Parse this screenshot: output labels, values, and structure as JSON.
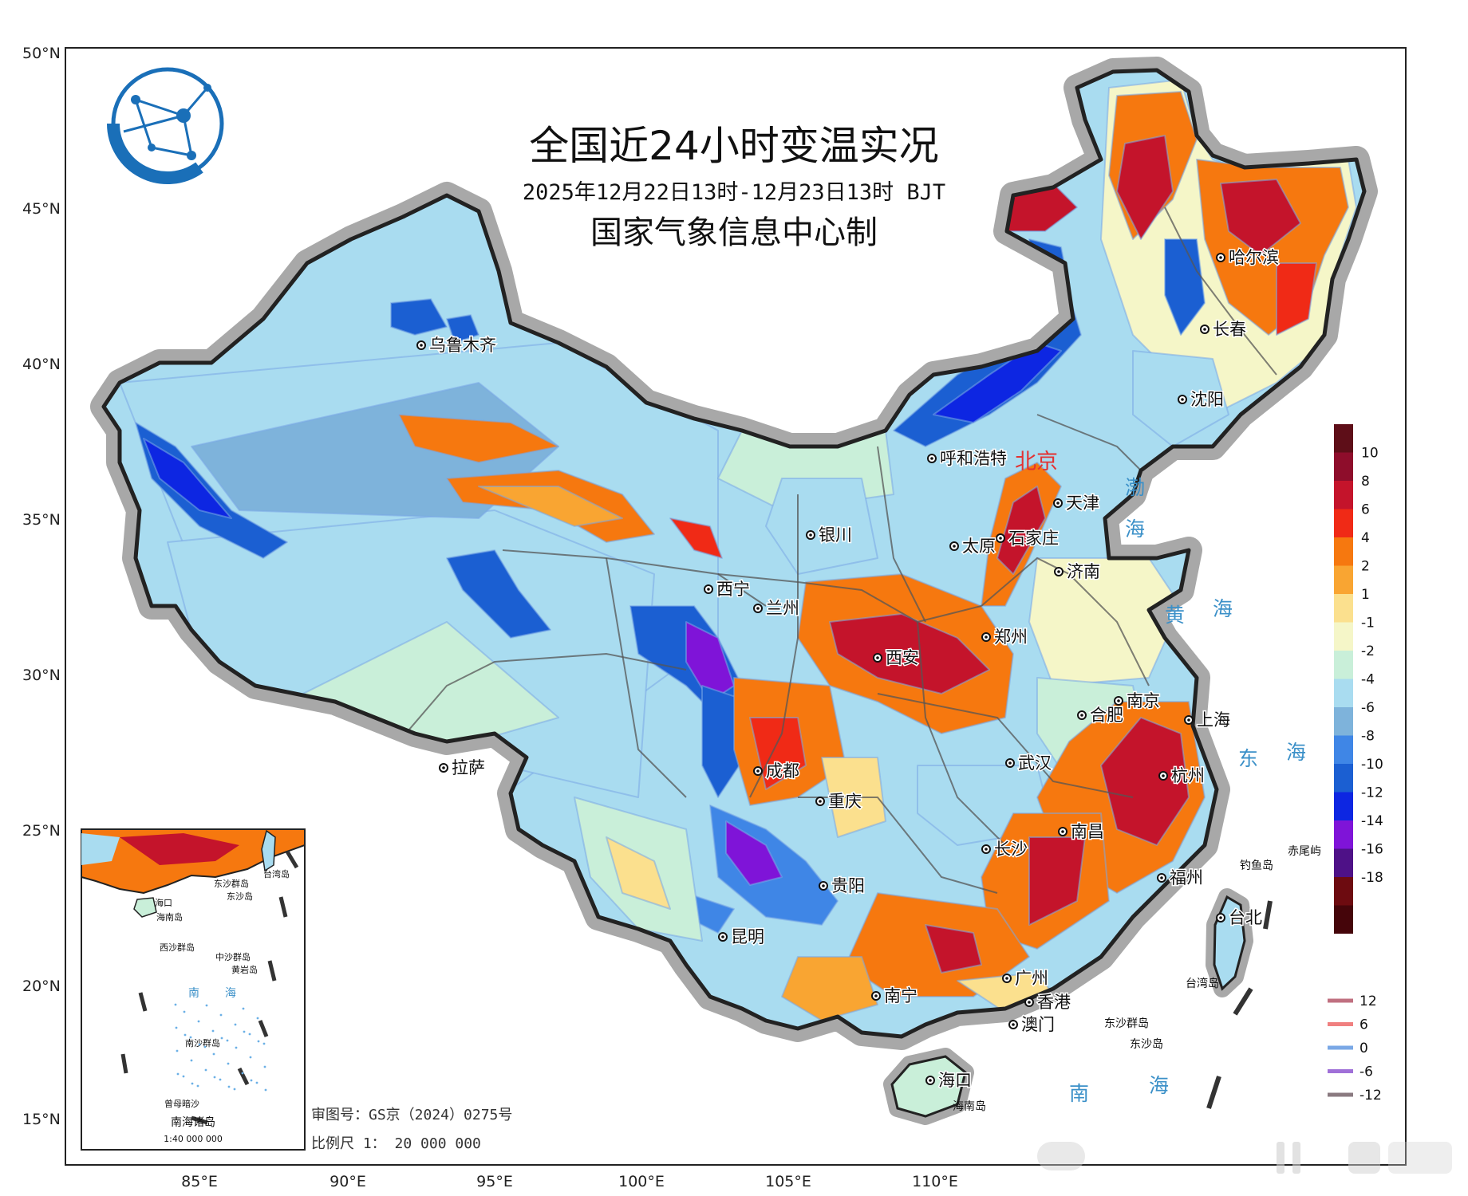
{
  "title": "全国近24小时变温实况",
  "subtitle": "2025年12月22日13时-12月23日13时 BJT",
  "organization": "国家气象信息中心制",
  "latitude_labels": [
    "50°N",
    "45°N",
    "40°N",
    "35°N",
    "30°N",
    "25°N",
    "20°N",
    "15°N"
  ],
  "longitude_labels": [
    "85°E",
    "90°E",
    "95°E",
    "100°E",
    "105°E",
    "110°E"
  ],
  "capital": "北京",
  "cities": [
    "乌鲁木齐",
    "哈尔滨",
    "长春",
    "沈阳",
    "呼和浩特",
    "天津",
    "石家庄",
    "银川",
    "太原",
    "济南",
    "西宁",
    "兰州",
    "西安",
    "郑州",
    "合肥",
    "南京",
    "上海",
    "拉萨",
    "成都",
    "武汉",
    "杭州",
    "重庆",
    "长沙",
    "南昌",
    "福州",
    "台北",
    "贵阳",
    "昆明",
    "广州",
    "南宁",
    "香港",
    "澳门",
    "海口"
  ],
  "seas": [
    "渤",
    "海",
    "黄",
    "海",
    "东",
    "海",
    "南",
    "海"
  ],
  "islands": [
    "钓鱼岛",
    "赤尾屿",
    "台湾岛",
    "东沙群岛",
    "东沙岛",
    "海南岛"
  ],
  "inset": {
    "title": "南海诸岛",
    "scale": "1:40 000 000",
    "labels": [
      "东沙群岛",
      "东沙岛",
      "台湾岛",
      "海口",
      "海南岛",
      "西沙群岛",
      "中沙群岛",
      "黄岩岛",
      "南",
      "海",
      "南沙群岛",
      "曾母暗沙"
    ]
  },
  "legend": {
    "title": "",
    "stops": [
      {
        "label": "10",
        "color": "#8e0d2b"
      },
      {
        "label": "8",
        "color": "#c4142b"
      },
      {
        "label": "6",
        "color": "#f02a16"
      },
      {
        "label": "4",
        "color": "#f6780f"
      },
      {
        "label": "2",
        "color": "#f9a532"
      },
      {
        "label": "1",
        "color": "#fbe08e"
      },
      {
        "label": "-1",
        "color": "#f5f6c8"
      },
      {
        "label": "-2",
        "color": "#c9efd9"
      },
      {
        "label": "-4",
        "color": "#a9dcf0"
      },
      {
        "label": "-6",
        "color": "#7eb3db"
      },
      {
        "label": "-8",
        "color": "#3f86e6"
      },
      {
        "label": "-10",
        "color": "#1b5fd2"
      },
      {
        "label": "-12",
        "color": "#0d26e2"
      },
      {
        "label": "-14",
        "color": "#7f14d8"
      },
      {
        "label": "-16",
        "color": "#4e1187"
      },
      {
        "label": "-18",
        "color": "#6d0b10"
      }
    ],
    "extra_colors": [
      "#5e0e18",
      "#45050a"
    ]
  },
  "isoline_legend": [
    {
      "label": "12",
      "color": "#c07080"
    },
    {
      "label": "6",
      "color": "#f08080"
    },
    {
      "label": "0",
      "color": "#7aa8e6"
    },
    {
      "label": "-6",
      "color": "#a070d8"
    },
    {
      "label": "-12",
      "color": "#8a7a80"
    }
  ],
  "approval_number": "审图号：GS京（2024）0275号",
  "scale": "比例尺 1： 20 000 000",
  "colors": {
    "border": "#222222",
    "halo": "#a8a8a8",
    "province_line": "#555555",
    "base_land": "#a9dcf0"
  }
}
